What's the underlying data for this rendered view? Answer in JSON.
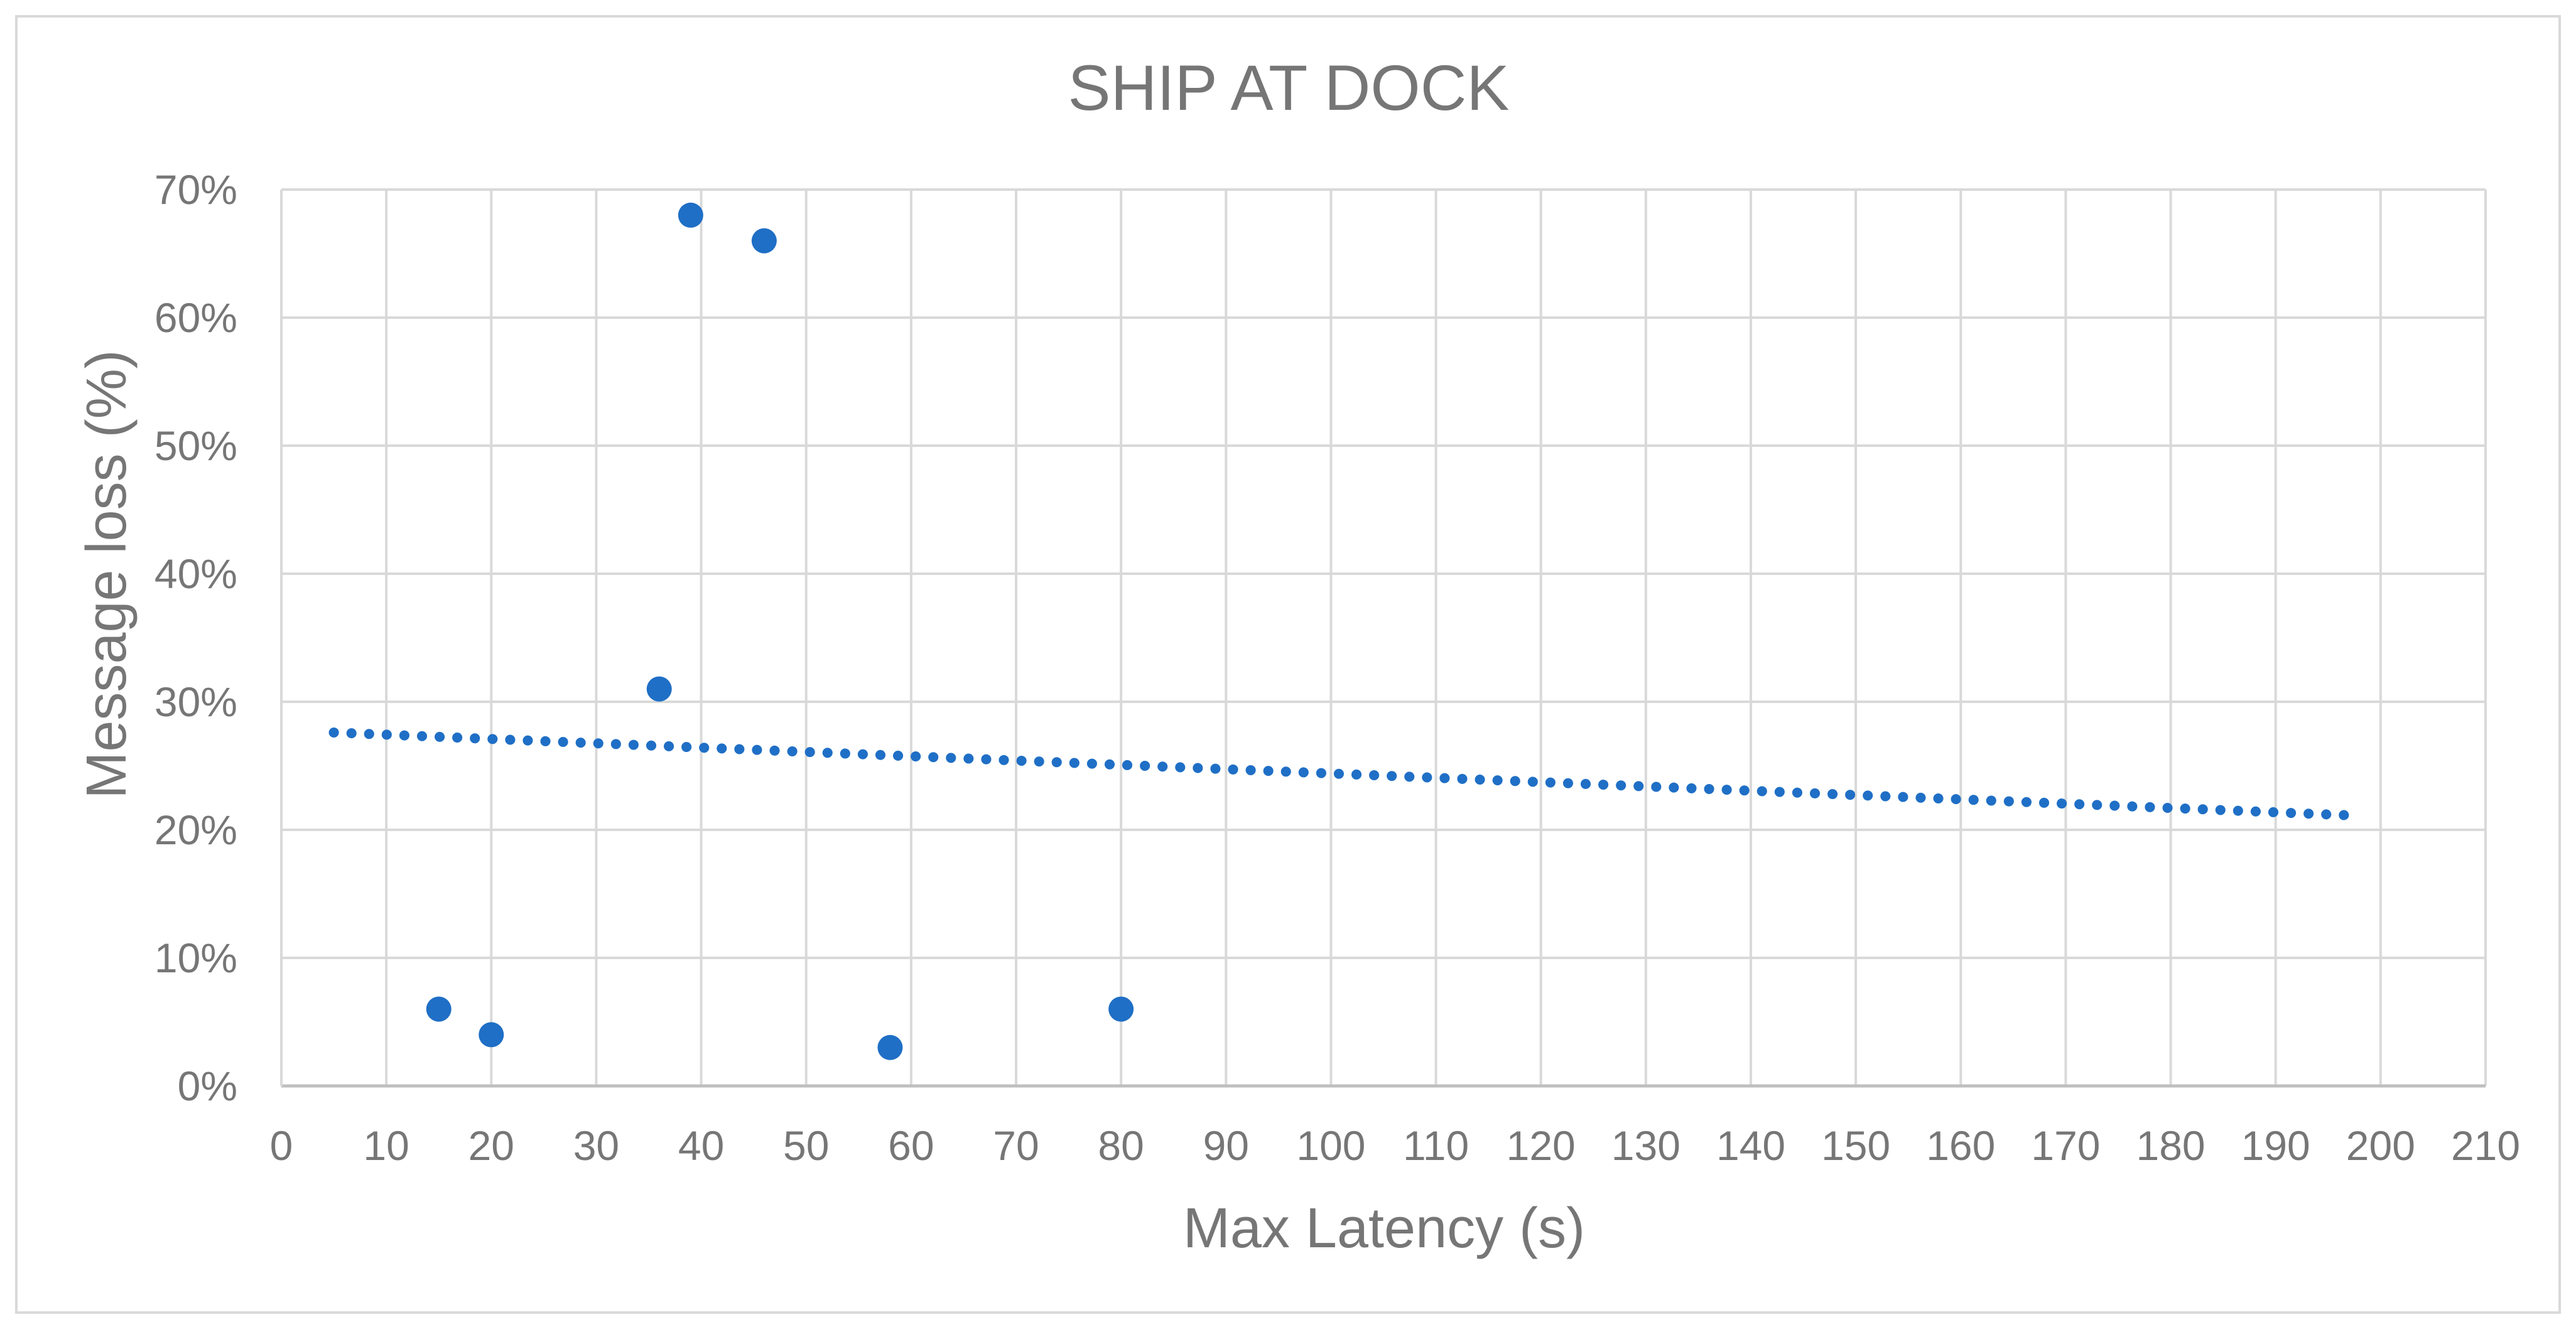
{
  "chart_data": {
    "type": "scatter",
    "title": "SHIP AT DOCK",
    "xlabel": "Max Latency (s)",
    "ylabel": "Message loss (%)",
    "xlim": [
      0,
      210
    ],
    "ylim": [
      0,
      70
    ],
    "x_ticks": [
      0,
      10,
      20,
      30,
      40,
      50,
      60,
      70,
      80,
      90,
      100,
      110,
      120,
      130,
      140,
      150,
      160,
      170,
      180,
      190,
      200,
      210
    ],
    "y_ticks": [
      0,
      10,
      20,
      30,
      40,
      50,
      60,
      70
    ],
    "y_tick_labels": [
      "0%",
      "10%",
      "20%",
      "30%",
      "40%",
      "50%",
      "60%",
      "70%"
    ],
    "grid": true,
    "legend": "none",
    "series": [
      {
        "points": [
          {
            "x": 15,
            "y": 6
          },
          {
            "x": 20,
            "y": 4
          },
          {
            "x": 36,
            "y": 31
          },
          {
            "x": 39,
            "y": 68
          },
          {
            "x": 46,
            "y": 66
          },
          {
            "x": 58,
            "y": 3
          },
          {
            "x": 80,
            "y": 6
          }
        ],
        "color": "#1f6fc6"
      }
    ],
    "trendline": {
      "style": "dotted",
      "color": "#1f6fc6",
      "start": {
        "x": 5,
        "y": 27.6
      },
      "end": {
        "x": 198,
        "y": 21.1
      }
    },
    "colors": {
      "text": "#767676",
      "grid": "#d9d9d9",
      "frame": "#d9d9d9"
    }
  }
}
